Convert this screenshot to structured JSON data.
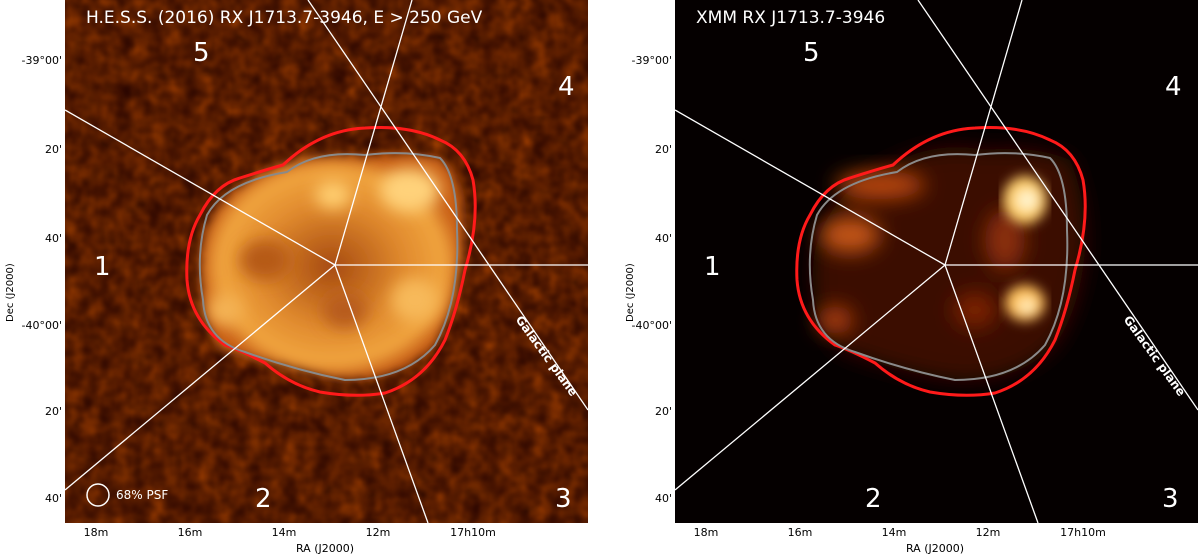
{
  "left_panel": {
    "title": "H.E.S.S. (2016) RX J1713.7-3946, E > 250 GeV",
    "psf_label": "68% PSF",
    "colormap": "fire"
  },
  "right_panel": {
    "title": "XMM RX J1713.7-3946",
    "colormap": "fire"
  },
  "sector_labels": [
    "1",
    "2",
    "3",
    "4",
    "5"
  ],
  "galactic_plane_label": "Galactic plane",
  "axes": {
    "ylabel": "Dec (J2000)",
    "xlabel": "RA (J2000)",
    "yticks": [
      "-39°00'",
      "20'",
      "40'",
      "-40°00'",
      "20'",
      "40'"
    ],
    "xticks": [
      "18m",
      "16m",
      "14m",
      "12m",
      "17h10m"
    ]
  },
  "colors": {
    "contour_outer": "#ff1a1a",
    "contour_inner": "#8a8a8a",
    "sector_lines": "#ffffff",
    "background_left": "#2a0500",
    "background_right": "#050000"
  }
}
